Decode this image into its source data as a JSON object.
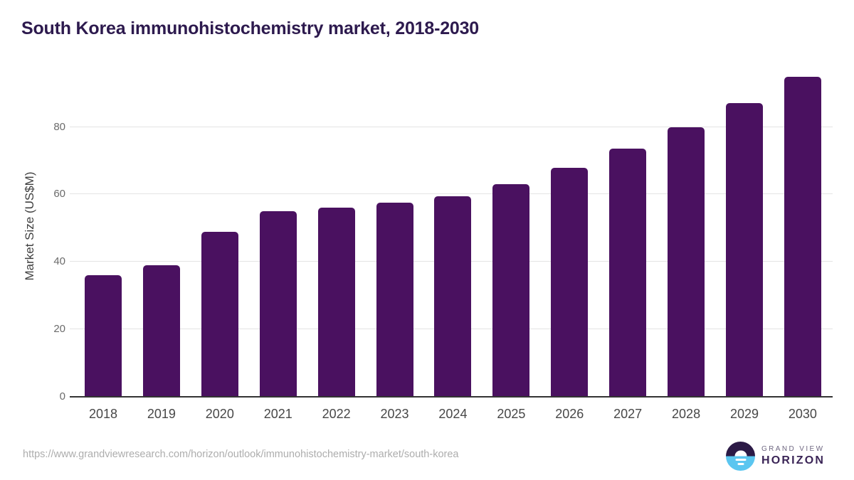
{
  "chart_data": {
    "type": "bar",
    "title": "South Korea immunohistochemistry market, 2018-2030",
    "categories": [
      "2018",
      "2019",
      "2020",
      "2021",
      "2022",
      "2023",
      "2024",
      "2025",
      "2026",
      "2027",
      "2028",
      "2029",
      "2030"
    ],
    "values": [
      36,
      39,
      49,
      55,
      56,
      57.5,
      59.5,
      63,
      68,
      73.5,
      80,
      87,
      95
    ],
    "xlabel": "",
    "ylabel": "Market Size (US$M)",
    "ylim": [
      0,
      97
    ],
    "yticks": [
      0,
      20,
      40,
      60,
      80
    ],
    "grid": "horizontal-light",
    "legend": "none"
  },
  "footer": {
    "source_url": "https://www.grandviewresearch.com/horizon/outlook/immunohistochemistry-market/south-korea",
    "logo": {
      "line1": "GRAND VIEW",
      "line2": "HORIZON"
    }
  },
  "colors": {
    "bar": "#4a1160",
    "title": "#2d1a4e",
    "y_tick": "#6b6b6b",
    "x_tick": "#474747",
    "axis_label": "#404040",
    "gridline": "#e4e4e4",
    "baseline": "#333333",
    "url_text": "#adadad",
    "logo_circle_top": "#2c1a46",
    "logo_circle_bottom": "#5bc6f0",
    "logo_title": "#3a2456",
    "logo_subtitle": "#6e6680"
  }
}
